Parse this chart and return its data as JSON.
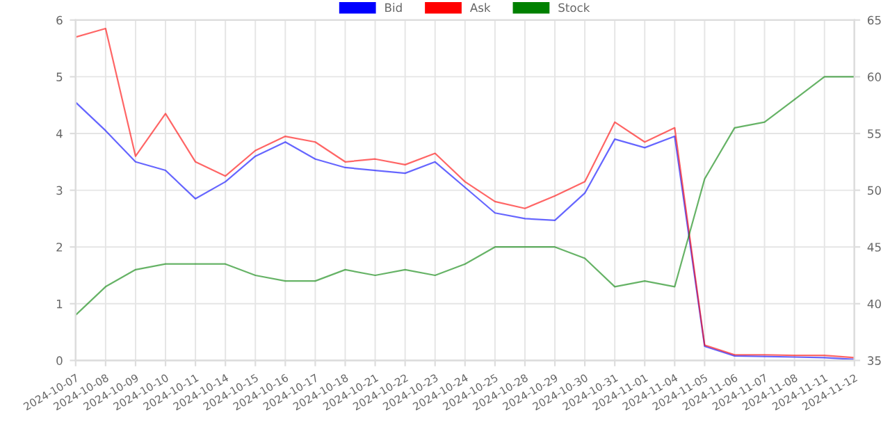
{
  "chart_data": {
    "type": "line",
    "categories": [
      "2024-10-07",
      "2024-10-08",
      "2024-10-09",
      "2024-10-10",
      "2024-10-11",
      "2024-10-14",
      "2024-10-15",
      "2024-10-16",
      "2024-10-17",
      "2024-10-18",
      "2024-10-21",
      "2024-10-22",
      "2024-10-23",
      "2024-10-24",
      "2024-10-25",
      "2024-10-28",
      "2024-10-29",
      "2024-10-30",
      "2024-10-31",
      "2024-11-01",
      "2024-11-04",
      "2024-11-05",
      "2024-11-06",
      "2024-11-07",
      "2024-11-08",
      "2024-11-11",
      "2024-11-12"
    ],
    "series": [
      {
        "name": "Bid",
        "color": "#0000ff",
        "values": [
          4.55,
          4.05,
          3.5,
          3.35,
          2.85,
          3.15,
          3.6,
          3.85,
          3.55,
          3.4,
          3.35,
          3.3,
          3.5,
          3.05,
          2.6,
          2.5,
          2.47,
          2.95,
          3.9,
          3.75,
          3.95,
          0.25,
          0.08,
          0.07,
          0.06,
          0.05,
          0.02
        ]
      },
      {
        "name": "Ask",
        "color": "#ff0000",
        "values": [
          5.7,
          5.85,
          3.6,
          4.35,
          3.5,
          3.25,
          3.7,
          3.95,
          3.85,
          3.5,
          3.55,
          3.45,
          3.65,
          3.15,
          2.8,
          2.68,
          2.9,
          3.15,
          4.2,
          3.85,
          4.1,
          0.27,
          0.1,
          0.1,
          0.09,
          0.09,
          0.05
        ]
      },
      {
        "name": "Stock",
        "color": "#008000",
        "axis": "y2",
        "values": [
          39,
          41.5,
          43,
          43.5,
          43.5,
          43.5,
          42.5,
          42,
          42,
          43,
          42.5,
          43,
          42.5,
          43.5,
          45,
          45,
          45,
          44,
          41.5,
          42,
          41.5,
          51,
          55.5,
          56,
          58,
          60,
          60
        ]
      }
    ],
    "ylim": [
      0,
      6
    ],
    "yticks": [
      0,
      1,
      2,
      3,
      4,
      5,
      6
    ],
    "y2lim": [
      35,
      65
    ],
    "y2ticks": [
      35,
      40,
      45,
      50,
      55,
      60,
      65
    ],
    "grid": true,
    "legend": "top",
    "marker": "none",
    "line_style": "solid"
  }
}
